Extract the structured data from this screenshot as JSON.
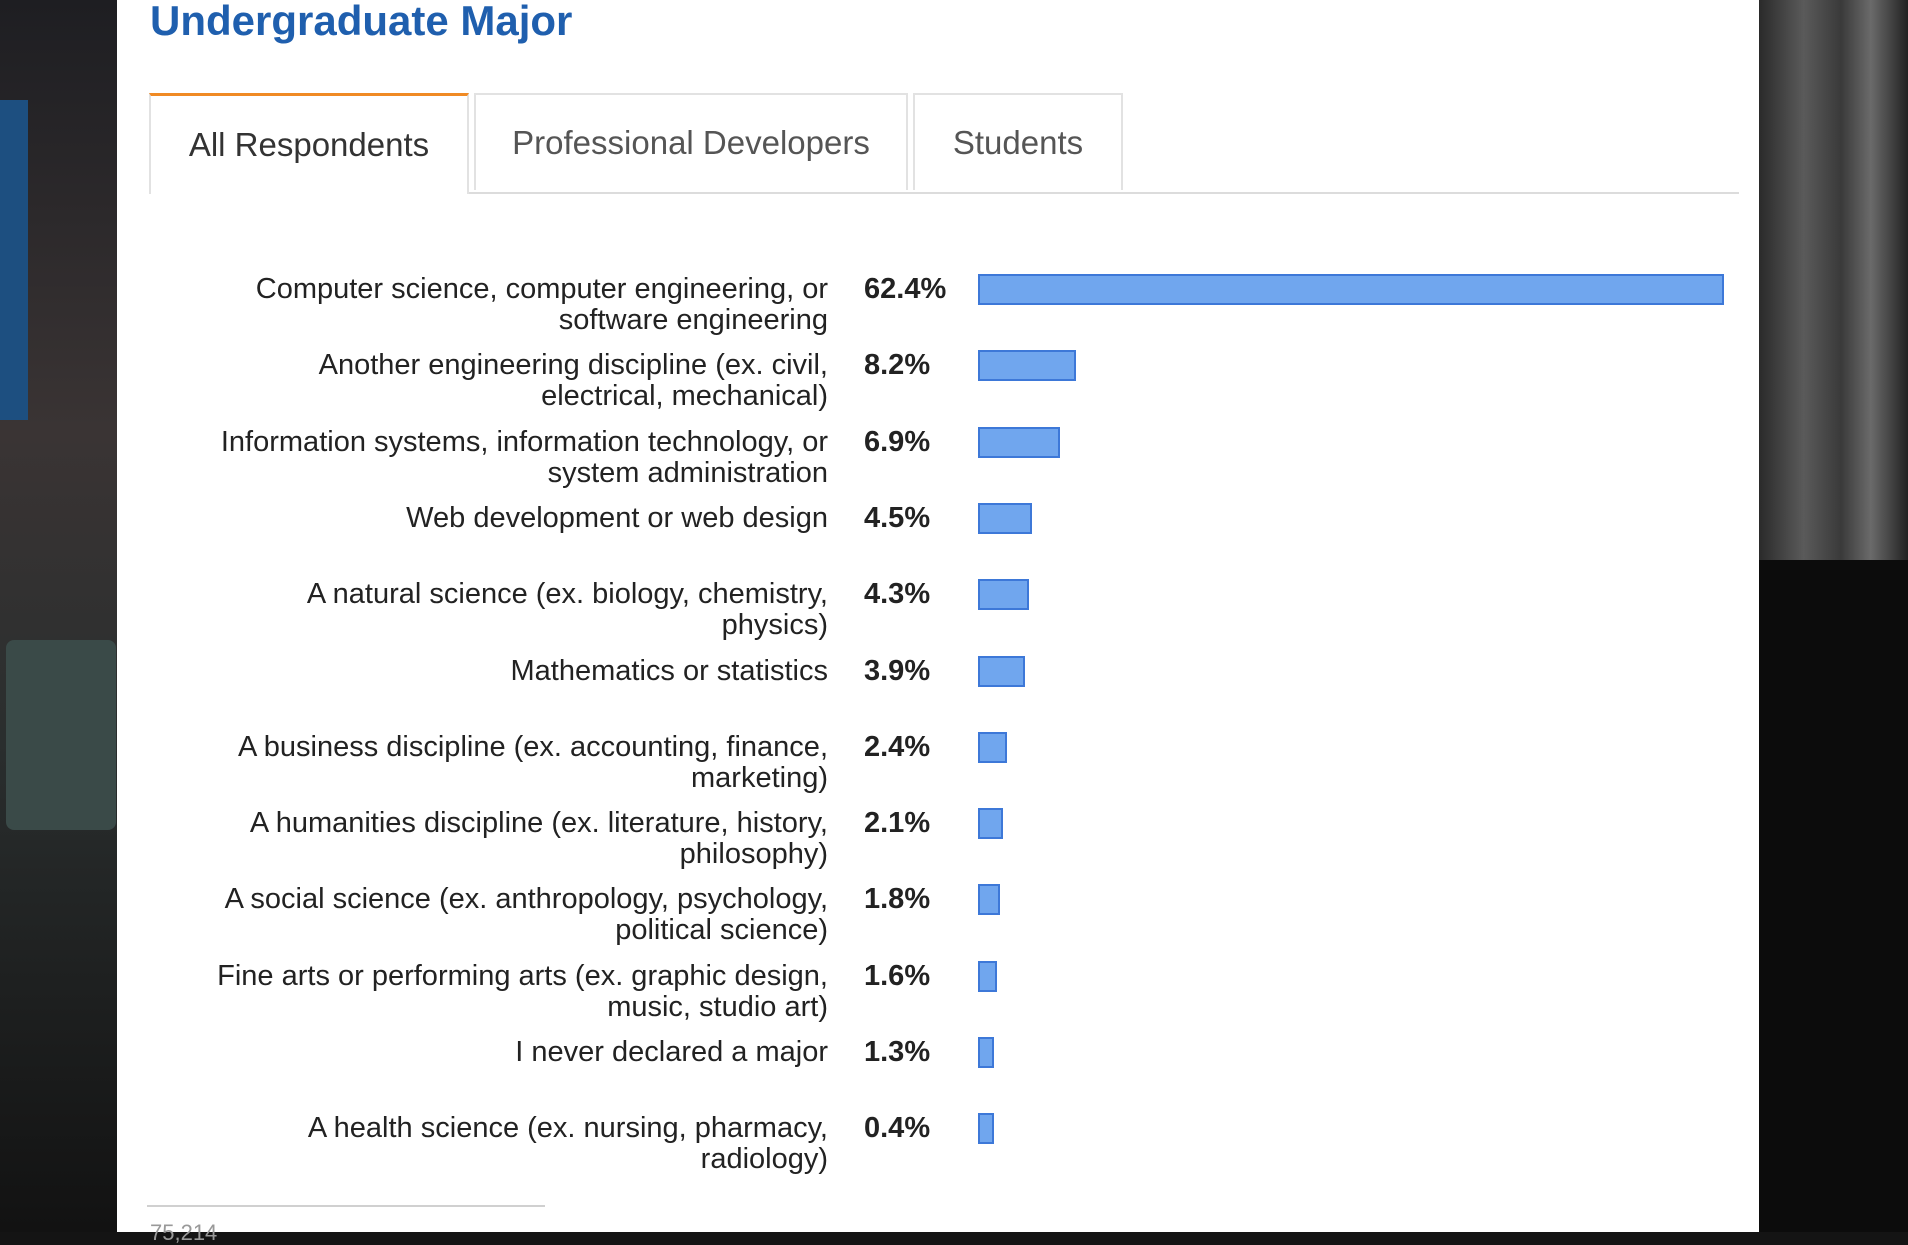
{
  "page": {
    "title": "Undergraduate Major",
    "tabs": [
      {
        "label": "All Respondents",
        "active": true
      },
      {
        "label": "Professional Developers",
        "active": false
      },
      {
        "label": "Students",
        "active": false
      }
    ],
    "footer_note": "75,214"
  },
  "colors": {
    "title": "#1f5fae",
    "active_tab_accent": "#f08a24",
    "bar_fill": "#70a6ee",
    "bar_border": "#3d78d8"
  },
  "chart_data": {
    "type": "bar",
    "orientation": "horizontal",
    "categories": [
      "Computer science, computer engineering, or\nsoftware engineering",
      "Another engineering discipline (ex. civil,\nelectrical, mechanical)",
      "Information systems, information technology, or\nsystem administration",
      "Web development or web design",
      "A natural science (ex. biology, chemistry,\nphysics)",
      "Mathematics or statistics",
      "A business discipline (ex. accounting, finance,\nmarketing)",
      "A humanities discipline (ex. literature, history,\nphilosophy)",
      "A social science (ex. anthropology, psychology,\npolitical science)",
      "Fine arts or performing arts (ex. graphic design,\nmusic, studio art)",
      "I never declared a major",
      "A health science (ex. nursing, pharmacy,\nradiology)"
    ],
    "values": [
      62.4,
      8.2,
      6.9,
      4.5,
      4.3,
      3.9,
      2.4,
      2.1,
      1.8,
      1.6,
      1.3,
      0.4
    ],
    "value_labels": [
      "62.4%",
      "8.2%",
      "6.9%",
      "4.5%",
      "4.3%",
      "3.9%",
      "2.4%",
      "2.1%",
      "1.8%",
      "1.6%",
      "1.3%",
      "0.4%"
    ],
    "unit": "%"
  }
}
